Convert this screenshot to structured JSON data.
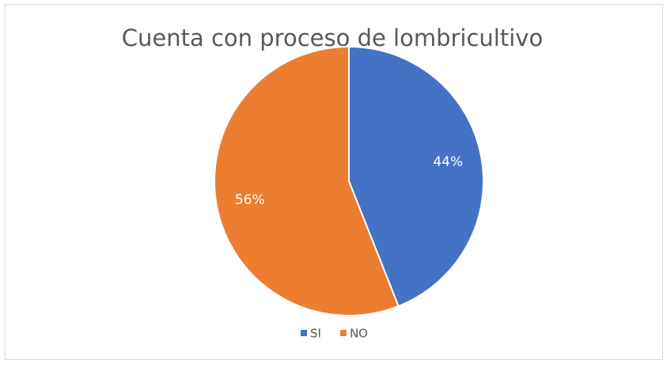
{
  "chart_data": {
    "type": "pie",
    "title": "Cuenta con proceso de lombricultivo",
    "categories": [
      "SI",
      "NO"
    ],
    "values": [
      44,
      56
    ],
    "value_labels": [
      "44%",
      "56%"
    ],
    "colors": [
      "#4472c4",
      "#ed7d31"
    ],
    "legend": "bottom"
  }
}
